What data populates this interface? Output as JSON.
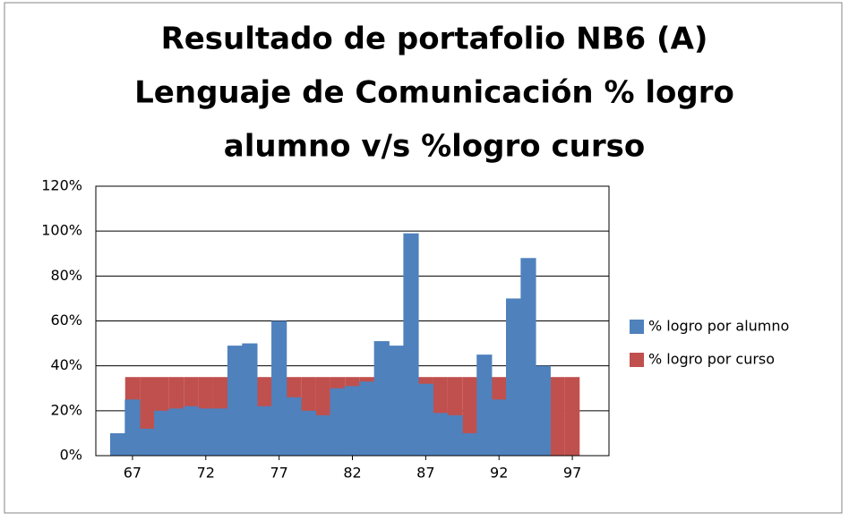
{
  "chart_data": {
    "type": "bar",
    "title": [
      "Resultado de portafolio NB6 (A)",
      "Lenguaje de Comunicación % logro",
      "alumno v/s %logro curso"
    ],
    "xlim": [
      64.5,
      99.5
    ],
    "xticks": [
      67,
      72,
      77,
      82,
      87,
      92,
      97
    ],
    "ylim": [
      0,
      120
    ],
    "yticks": [
      {
        "value": 0,
        "label": "0%"
      },
      {
        "value": 20,
        "label": "20%"
      },
      {
        "value": 40,
        "label": "40%"
      },
      {
        "value": 60,
        "label": "60%"
      },
      {
        "value": 80,
        "label": "80%"
      },
      {
        "value": 100,
        "label": "100%"
      },
      {
        "value": 120,
        "label": "120%"
      }
    ],
    "grid": true,
    "legend": "right",
    "series": [
      {
        "name": "% logro por curso",
        "color": "#c0504d",
        "x": [
          67,
          68,
          69,
          70,
          71,
          72,
          73,
          74,
          75,
          76,
          77,
          78,
          79,
          80,
          81,
          82,
          83,
          84,
          85,
          86,
          87,
          88,
          89,
          90,
          91,
          92,
          93,
          94,
          95,
          96,
          97
        ],
        "values": [
          35,
          35,
          35,
          35,
          35,
          35,
          35,
          35,
          35,
          35,
          35,
          35,
          35,
          35,
          35,
          35,
          35,
          35,
          35,
          35,
          35,
          35,
          35,
          35,
          35,
          35,
          35,
          35,
          35,
          35,
          35
        ]
      },
      {
        "name": "% logro por alumno",
        "color": "#4f81bd",
        "x": [
          66,
          67,
          68,
          69,
          70,
          71,
          72,
          73,
          74,
          75,
          76,
          77,
          78,
          79,
          80,
          81,
          82,
          83,
          84,
          85,
          86,
          87,
          88,
          89,
          90,
          91,
          92,
          93,
          94,
          95
        ],
        "values": [
          10,
          25,
          12,
          20,
          21,
          22,
          21,
          21,
          49,
          50,
          22,
          60,
          26,
          20,
          18,
          30,
          31,
          33,
          51,
          49,
          99,
          32,
          19,
          18,
          10,
          45,
          25,
          70,
          88,
          40
        ]
      }
    ]
  }
}
